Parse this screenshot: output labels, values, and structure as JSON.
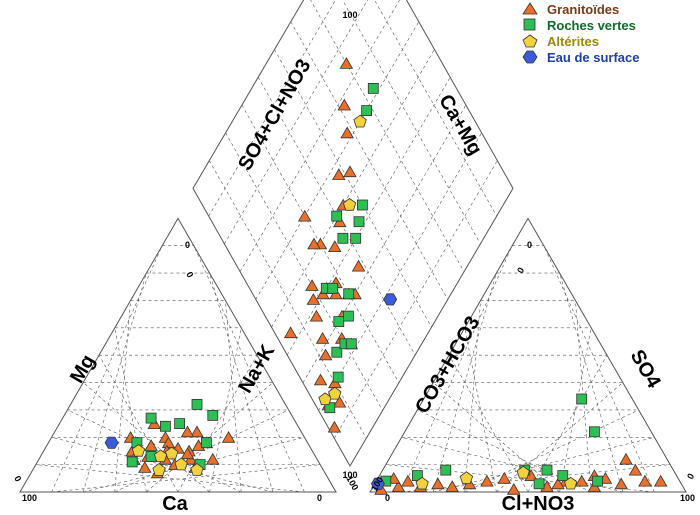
{
  "chart_data": {
    "type": "scatter",
    "subtype": "piper-diagram",
    "grid": true,
    "grid_step_percent": 10,
    "legend_position": "top-right",
    "legend": [
      {
        "name": "Granitoïdes",
        "marker": "triangle",
        "fill": "#E8702A",
        "text_color": "#7A3A12"
      },
      {
        "name": "Roches vertes",
        "marker": "square",
        "fill": "#2DBE54",
        "text_color": "#0F6B2C"
      },
      {
        "name": "Altérites",
        "marker": "pentagon",
        "fill": "#F2D23C",
        "text_color": "#9A8A00"
      },
      {
        "name": "Eau de surface",
        "marker": "hexagon",
        "fill": "#3B5BDB",
        "text_color": "#1F3FA8"
      }
    ],
    "panels": {
      "cation": {
        "axis_labels": {
          "left": "Mg",
          "right": "Na+K",
          "bottom": "Ca"
        },
        "tick_labels": {
          "bottom_left": "100",
          "bottom_right": "0",
          "top": "0",
          "left_bottom": "0",
          "right_bottom": "100"
        }
      },
      "anion": {
        "axis_labels": {
          "left": "CO3+HCO3",
          "right": "SO4",
          "bottom": "Cl+NO3"
        },
        "tick_labels": {
          "bottom_left": "0",
          "bottom_right": "100",
          "top": "0",
          "left_bottom": "100",
          "right_bottom": "0"
        }
      },
      "diamond": {
        "axis_labels": {
          "upper_left": "SO4+Cl+NO3",
          "upper_right": "Ca+Mg"
        },
        "tick_labels": {
          "top": "100",
          "left": "0",
          "right": "0",
          "bottom": "100"
        }
      }
    },
    "series": [
      {
        "name": "Granitoïdes",
        "cation_percent": [
          [
            40,
            7
          ],
          [
            28,
            15
          ],
          [
            35,
            9
          ],
          [
            50,
            18
          ],
          [
            45,
            22
          ],
          [
            48,
            12
          ],
          [
            42,
            16
          ],
          [
            30,
            12
          ],
          [
            36,
            20
          ],
          [
            55,
            12
          ],
          [
            38,
            18
          ],
          [
            44,
            10
          ],
          [
            51,
            9
          ],
          [
            34,
            13
          ],
          [
            46,
            15
          ],
          [
            40,
            12
          ],
          [
            42,
            22
          ],
          [
            30,
            25
          ],
          [
            33,
            17
          ],
          [
            25,
            20
          ],
          [
            48,
            17
          ],
          [
            46,
            14
          ],
          [
            39,
            15
          ],
          [
            56,
            20
          ]
        ],
        "anion_percent": [
          [
            80,
            8
          ],
          [
            75,
            12
          ],
          [
            78,
            3
          ],
          [
            85,
            4
          ],
          [
            60,
            4
          ],
          [
            55,
            2
          ],
          [
            65,
            4
          ],
          [
            70,
            2
          ],
          [
            90,
            4
          ],
          [
            30,
            3
          ],
          [
            40,
            5
          ],
          [
            45,
            1
          ],
          [
            58,
            3
          ],
          [
            68,
            6
          ],
          [
            72,
            5
          ],
          [
            8,
            2
          ],
          [
            10,
            4
          ],
          [
            15,
            2
          ],
          [
            20,
            3
          ],
          [
            3,
            1
          ],
          [
            5,
            5
          ],
          [
            25,
            2
          ],
          [
            35,
            4
          ],
          [
            48,
            6
          ]
        ]
      },
      {
        "name": "Roches vertes",
        "cation_percent": [
          [
            28,
            27
          ],
          [
            34,
            24
          ],
          [
            40,
            32
          ],
          [
            47,
            28
          ],
          [
            28,
            18
          ],
          [
            30,
            11
          ],
          [
            38,
            25
          ],
          [
            52,
            10
          ],
          [
            35,
            13
          ],
          [
            50,
            18
          ]
        ],
        "anion_percent": [
          [
            50,
            34
          ],
          [
            60,
            22
          ],
          [
            52,
            8
          ],
          [
            58,
            6
          ],
          [
            70,
            4
          ],
          [
            20,
            8
          ],
          [
            3,
            4
          ],
          [
            45,
            8
          ],
          [
            12,
            6
          ],
          [
            52,
            3
          ]
        ]
      },
      {
        "name": "Altérites",
        "cation_percent": [
          [
            30,
            15
          ],
          [
            41,
            14
          ],
          [
            52,
            8
          ],
          [
            38,
            13
          ],
          [
            40,
            8
          ],
          [
            46,
            10
          ]
        ],
        "anion_percent": [
          [
            62,
            3
          ],
          [
            15,
            3
          ],
          [
            28,
            5
          ],
          [
            45,
            7
          ]
        ]
      },
      {
        "name": "Eau de surface",
        "cation_percent": [
          [
            20,
            18
          ]
        ],
        "anion_percent": [
          [
            1,
            3
          ]
        ]
      }
    ],
    "diamond_points": [
      {
        "series": "Granitoïdes",
        "pts": [
          [
            15,
            95
          ],
          [
            25,
            70
          ],
          [
            32,
            62
          ],
          [
            38,
            58
          ],
          [
            46,
            52
          ],
          [
            43,
            48
          ],
          [
            50,
            44
          ],
          [
            52,
            40
          ],
          [
            55,
            34
          ],
          [
            50,
            30
          ],
          [
            40,
            30
          ],
          [
            48,
            28
          ],
          [
            60,
            22
          ],
          [
            60,
            24
          ],
          [
            62,
            16
          ],
          [
            55,
            20
          ],
          [
            58,
            18
          ],
          [
            64,
            26
          ],
          [
            62,
            28
          ],
          [
            70,
            32
          ],
          [
            66,
            38
          ],
          [
            68,
            14
          ],
          [
            72,
            12
          ],
          [
            57,
            5
          ],
          [
            75,
            6
          ],
          [
            80,
            10
          ],
          [
            74,
            20
          ],
          [
            82,
            4
          ],
          [
            88,
            2
          ],
          [
            85,
            8
          ],
          [
            68,
            30
          ],
          [
            78,
            22
          ],
          [
            70,
            24
          ]
        ]
      },
      {
        "series": "Roches vertes",
        "pts": [
          [
            38,
            74
          ],
          [
            40,
            68
          ],
          [
            56,
            50
          ],
          [
            58,
            46
          ],
          [
            60,
            42
          ],
          [
            60,
            24
          ],
          [
            68,
            30
          ],
          [
            70,
            22
          ],
          [
            72,
            26
          ],
          [
            75,
            16
          ],
          [
            76,
            20
          ],
          [
            78,
            22
          ],
          [
            62,
            26
          ],
          [
            80,
            12
          ],
          [
            83,
            4
          ],
          [
            56,
            38
          ],
          [
            50,
            40
          ]
        ]
      },
      {
        "series": "Altérites",
        "pts": [
          [
            40,
            64
          ],
          [
            52,
            46
          ],
          [
            80,
            4
          ],
          [
            82,
            8
          ]
        ]
      },
      {
        "series": "Eau de surface",
        "pts": [
          [
            82,
            42
          ]
        ]
      }
    ]
  }
}
